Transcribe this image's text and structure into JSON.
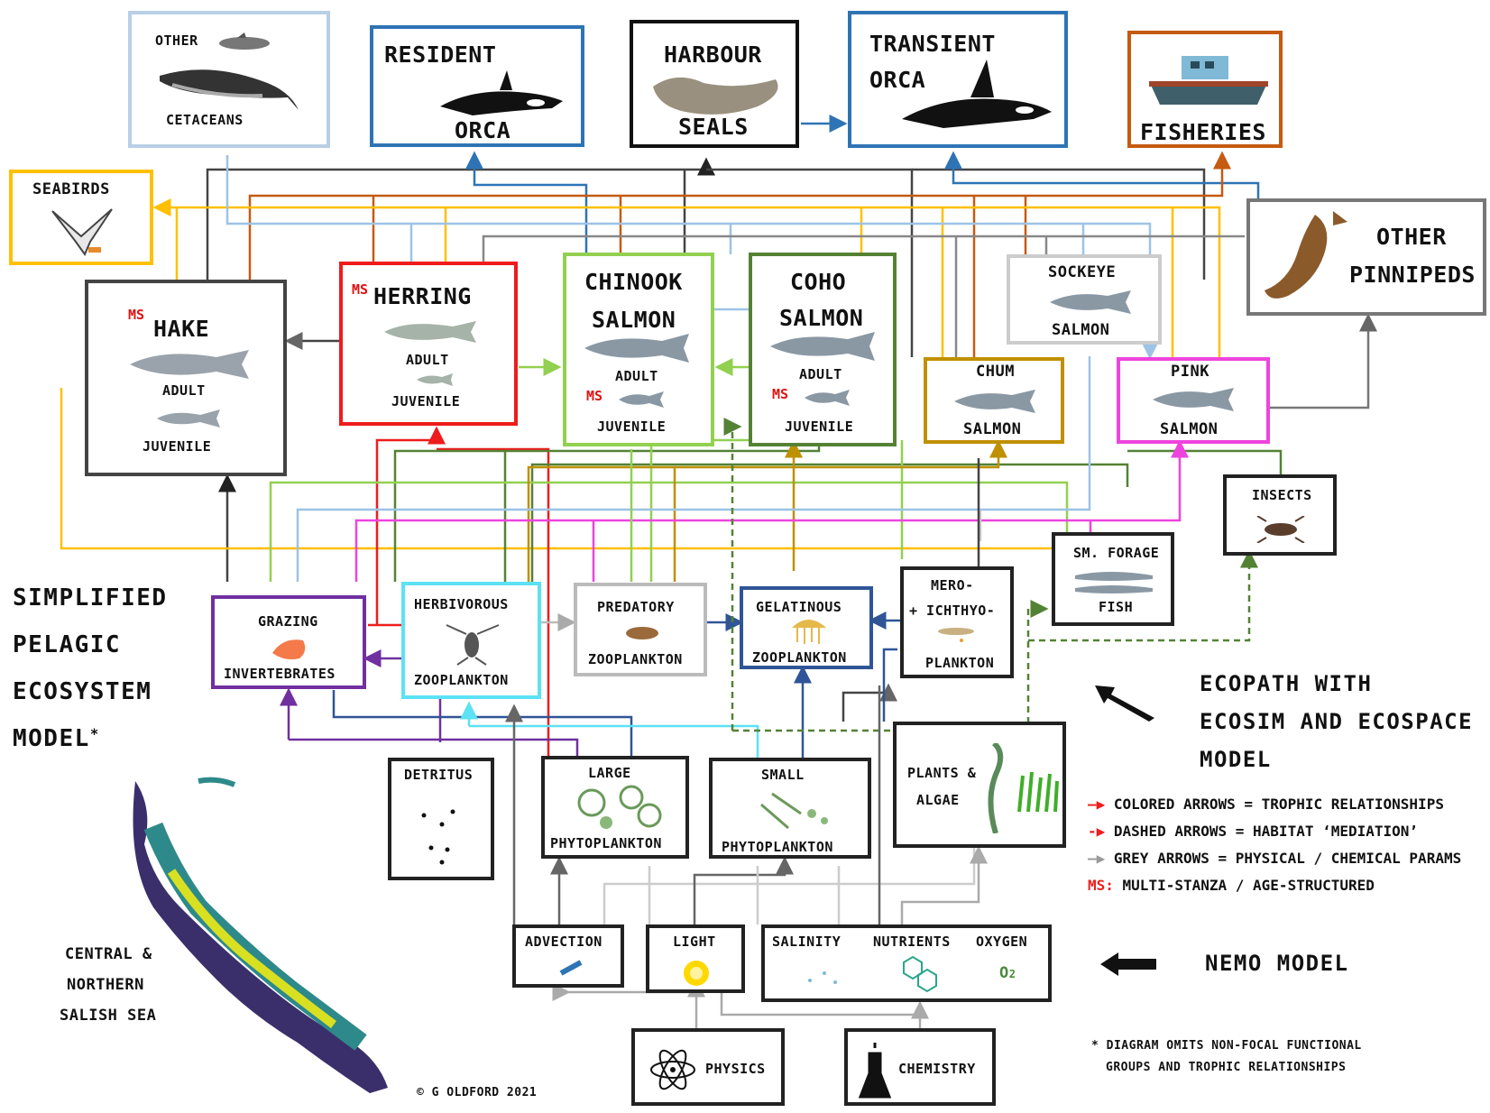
{
  "groups": {
    "other_cetaceans": {
      "line1": "OTHER",
      "line2": "CETACEANS"
    },
    "resident_orca": {
      "line1": "RESIDENT",
      "line2": "ORCA"
    },
    "harbour_seals": {
      "line1": "HARBOUR",
      "line2": "SEALS"
    },
    "transient_orca": {
      "line1": "TRANSIENT",
      "line2": "ORCA"
    },
    "fisheries": {
      "label": "FISHERIES"
    },
    "seabirds": {
      "label": "SEABIRDS"
    },
    "other_pinnipeds": {
      "line1": "OTHER",
      "line2": "PINNIPEDS"
    },
    "hake": {
      "ms": "MS",
      "name": "HAKE",
      "adult": "ADULT",
      "juvenile": "JUVENILE"
    },
    "herring": {
      "ms": "MS",
      "name": "HERRING",
      "adult": "ADULT",
      "juvenile": "JUVENILE"
    },
    "chinook": {
      "line1": "CHINOOK",
      "line2": "SALMON",
      "adult": "ADULT",
      "ms": "MS",
      "juvenile": "JUVENILE"
    },
    "coho": {
      "line1": "COHO",
      "line2": "SALMON",
      "adult": "ADULT",
      "ms": "MS",
      "juvenile": "JUVENILE"
    },
    "sockeye": {
      "line1": "SOCKEYE",
      "line2": "SALMON"
    },
    "chum": {
      "line1": "CHUM",
      "line2": "SALMON"
    },
    "pink": {
      "line1": "PINK",
      "line2": "SALMON"
    },
    "insects": {
      "label": "INSECTS"
    },
    "sm_forage": {
      "line1": "SM. FORAGE",
      "line2": "FISH"
    },
    "grazing_invert": {
      "line1": "GRAZING",
      "line2": "INVERTEBRATES"
    },
    "herbivorous_zoo": {
      "line1": "HERBIVOROUS",
      "line2": "ZOOPLANKTON"
    },
    "predatory_zoo": {
      "line1": "PREDATORY",
      "line2": "ZOOPLANKTON"
    },
    "gelatinous_zoo": {
      "line1": "GELATINOUS",
      "line2": "ZOOPLANKTON"
    },
    "mero_ichthyo": {
      "line1": "MERO-",
      "line2": "+ ICHTHYO-",
      "line3": "PLANKTON"
    },
    "detritus": {
      "label": "DETRITUS"
    },
    "large_phyto": {
      "line1": "LARGE",
      "line2": "PHYTOPLANKTON"
    },
    "small_phyto": {
      "line1": "SMALL",
      "line2": "PHYTOPLANKTON"
    },
    "plants_algae": {
      "line1": "PLANTS &",
      "line2": "ALGAE"
    },
    "advection": {
      "label": "ADVECTION"
    },
    "light": {
      "label": "LIGHT"
    },
    "salinity": {
      "label": "SALINITY"
    },
    "nutrients": {
      "label": "NUTRIENTS"
    },
    "oxygen": {
      "label": "OXYGEN",
      "symbol": "O",
      "subscript": "2"
    },
    "physics": {
      "label": "PHYSICS"
    },
    "chemistry": {
      "label": "CHEMISTRY"
    }
  },
  "title": {
    "line1": "SIMPLIFIED",
    "line2": "PELAGIC",
    "line3": "ECOSYSTEM",
    "line4": "MODEL",
    "mark": "*"
  },
  "ecopath": {
    "line1": "ECOPATH WITH",
    "line2": "ECOSIM AND ECOSPACE",
    "line3": "MODEL"
  },
  "nemo": {
    "label": "NEMO MODEL"
  },
  "legend": {
    "colored": "COLORED ARROWS = TROPHIC RELATIONSHIPS",
    "dashed": "DASHED ARROWS = HABITAT ‘MEDIATION’",
    "grey": "GREY ARROWS = PHYSICAL / CHEMICAL PARAMS",
    "ms_key": "MS:",
    "ms_text": " MULTI-STANZA / AGE-STRUCTURED"
  },
  "map": {
    "line1": "CENTRAL &",
    "line2": "NORTHERN",
    "line3": "SALISH SEA"
  },
  "footnote": {
    "line1": "* DIAGRAM OMITS NON-FOCAL FUNCTIONAL",
    "line2": "GROUPS AND TROPHIC RELATIONSHIPS"
  },
  "credit": {
    "label": "© G OLDFORD 2021"
  },
  "colors": {
    "other_cetaceans": "#b8cfe6",
    "resident_orca": "#2e74b5",
    "harbour_seals": "#111111",
    "transient_orca": "#2e74b5",
    "fisheries": "#c55a11",
    "seabirds": "#ffc000",
    "other_pinnipeds": "#777777",
    "hake": "#444444",
    "herring": "#ee1c1c",
    "chinook": "#92d050",
    "coho": "#548235",
    "sockeye": "#cccccc",
    "chum": "#bf9000",
    "pink": "#ee44dd",
    "grazing": "#7030a0",
    "herbivorous": "#5ce1f5",
    "predatory": "#bbbbbb",
    "gelatinous": "#2f5597",
    "dashed": "#548235"
  }
}
